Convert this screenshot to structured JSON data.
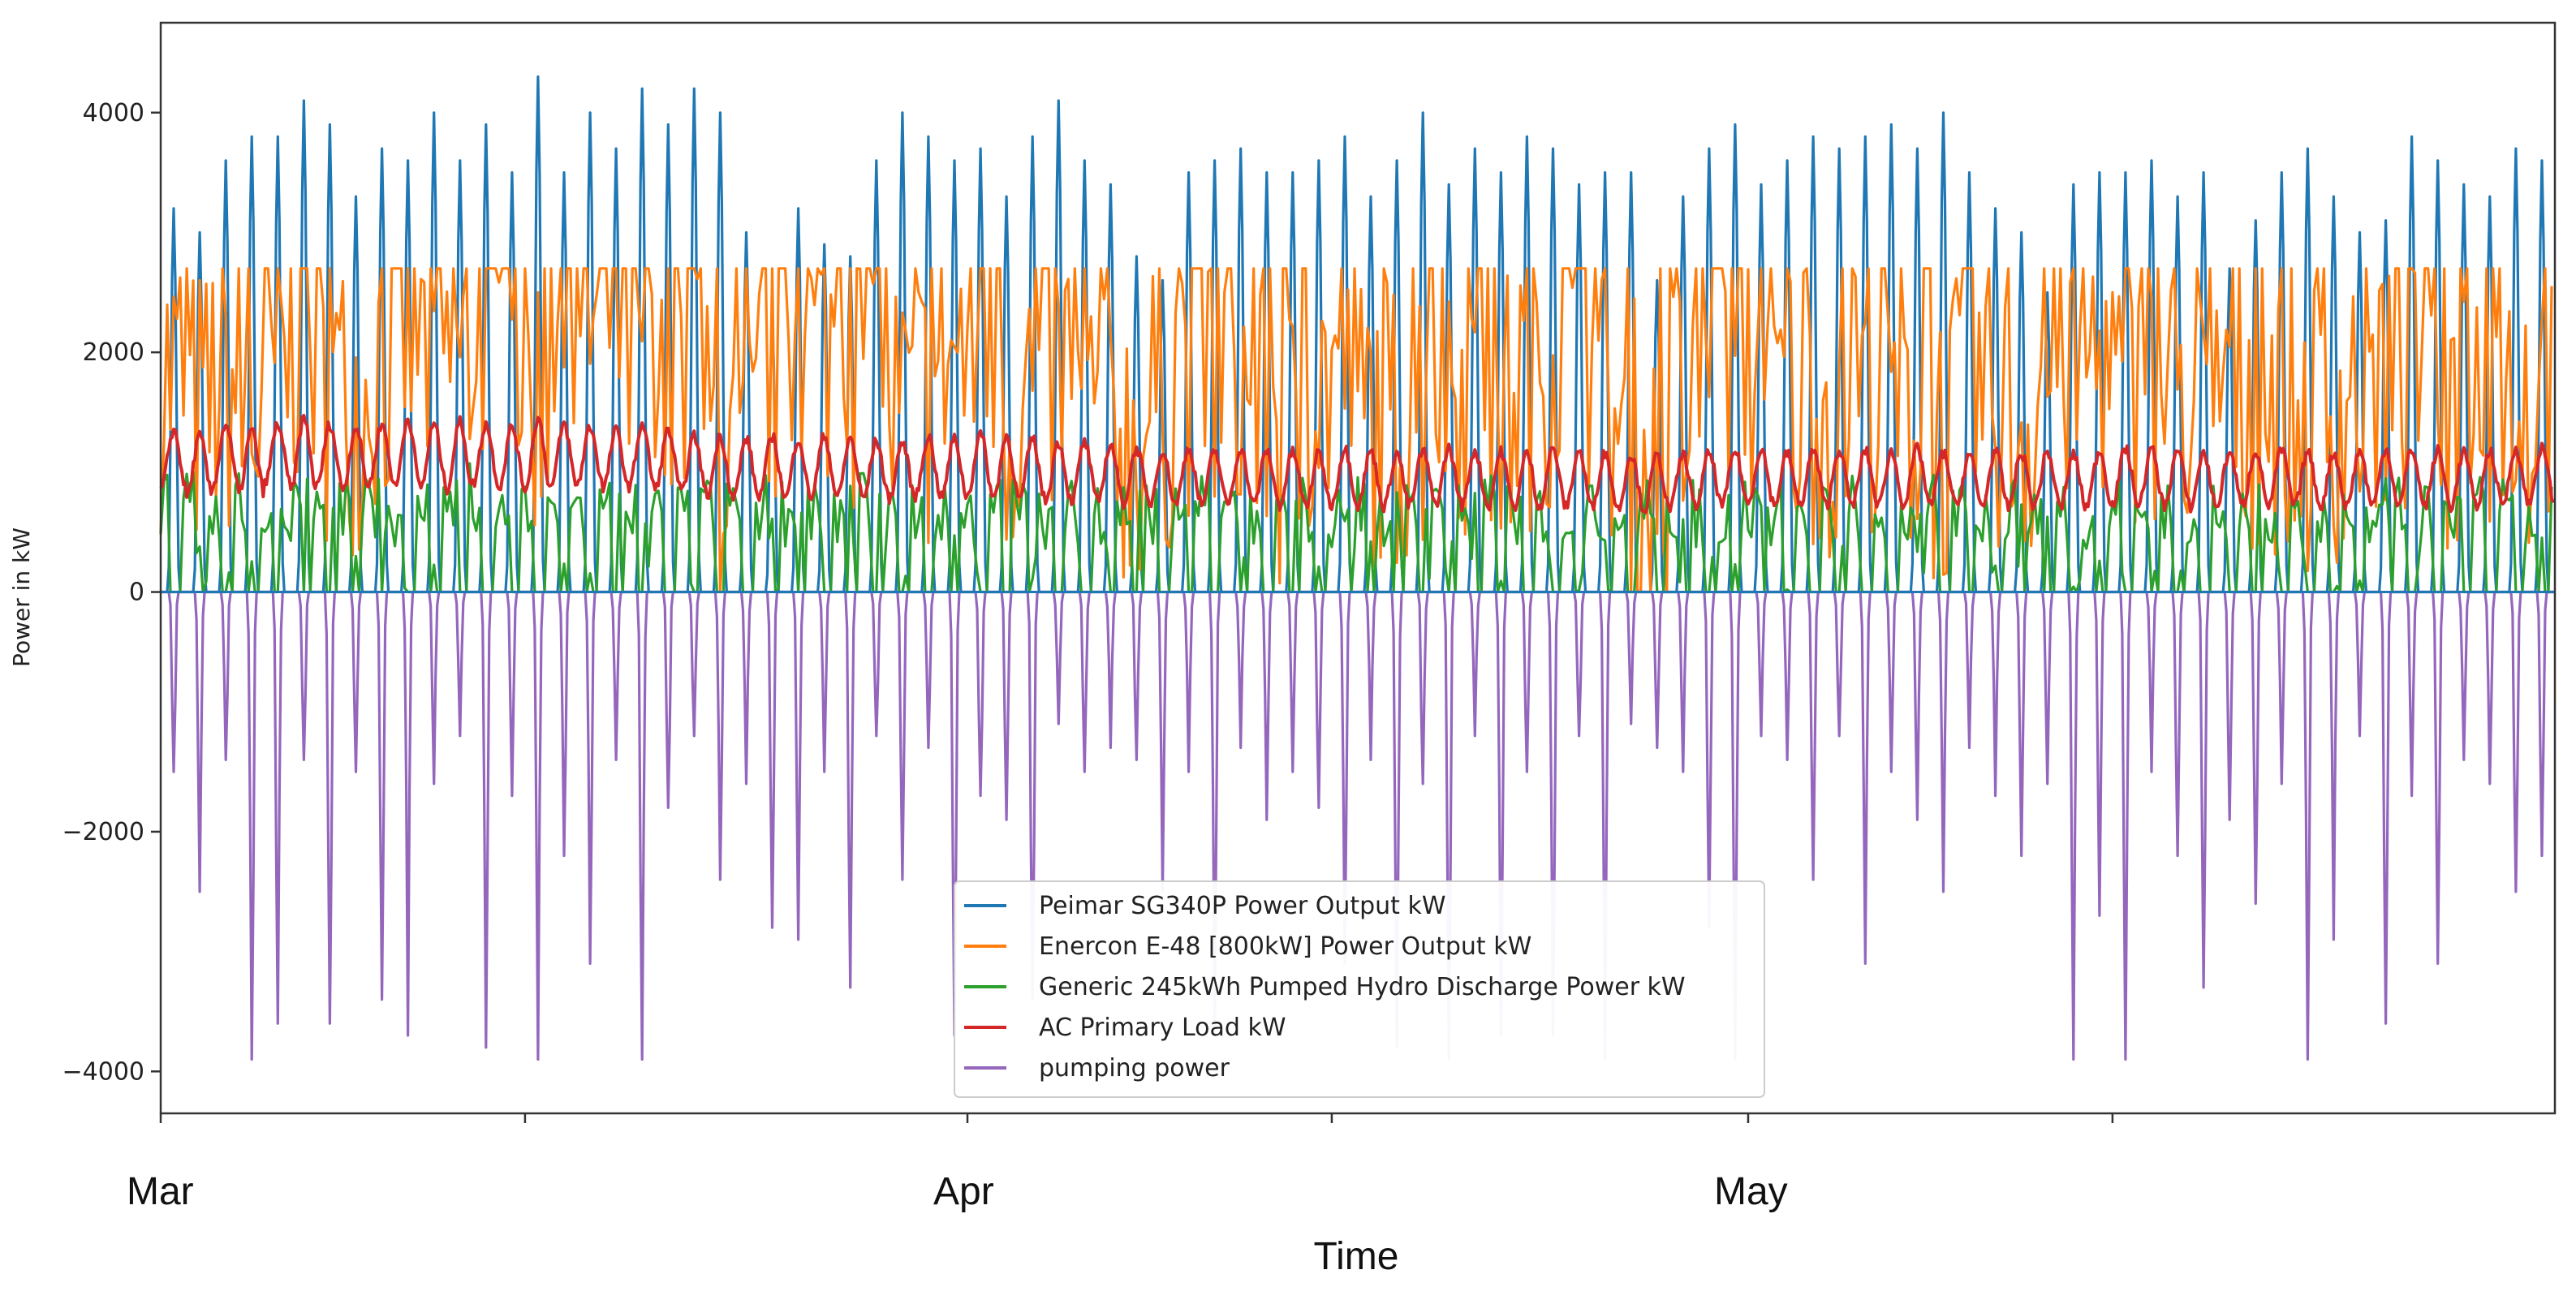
{
  "chart_data": {
    "type": "line",
    "title": "",
    "xlabel": "Time",
    "ylabel": "Power in kW",
    "ylim": [
      -4350,
      4750
    ],
    "yticks": [
      4000,
      2000,
      0,
      -2000,
      -4000
    ],
    "ytick_labels": [
      "4000",
      "2000",
      "0",
      "−2000",
      "−4000"
    ],
    "x_unit": "days since Mar 1",
    "xlim": [
      0,
      92
    ],
    "xticks_days": [
      0,
      14,
      31,
      45,
      61,
      75
    ],
    "month_labels": [
      {
        "label": "Mar",
        "day": 0
      },
      {
        "label": "Apr",
        "day": 31
      },
      {
        "label": "May",
        "day": 61
      }
    ],
    "legend_position": "bottom-center",
    "grid": false,
    "series": [
      {
        "name": "Peimar SG340P Power Output kW",
        "color": "#1f77b4",
        "daily_peak_kw": [
          3200,
          3000,
          3600,
          3800,
          3800,
          4100,
          3900,
          3300,
          3700,
          3600,
          4000,
          3600,
          3900,
          3500,
          4300,
          3500,
          4000,
          3700,
          4200,
          3900,
          4200,
          4000,
          3000,
          2300,
          3200,
          2900,
          2800,
          3600,
          4000,
          3800,
          3600,
          3700,
          3300,
          3800,
          4100,
          3600,
          3400,
          2800,
          2600,
          3500,
          3600,
          3700,
          3500,
          3500,
          3600,
          3800,
          3300,
          3600,
          4000,
          3400,
          3700,
          3500,
          3800,
          3700,
          3400,
          3500,
          3500,
          2600,
          3300,
          3700,
          3900,
          3400,
          3600,
          3800,
          3700,
          3800,
          3900,
          3700,
          4000,
          3500,
          3200,
          3000,
          2500,
          3400,
          3500,
          3500,
          3600,
          3300,
          3500,
          2700,
          3100,
          3500,
          3700,
          3300,
          3000,
          3100,
          3800,
          3600,
          3400,
          3300,
          3700,
          3600
        ]
      },
      {
        "name": "Enercon E-48 [800kW] Power Output kW",
        "color": "#ff7f0e",
        "daily_mean_kw": [
          1800,
          1500,
          1700,
          1400,
          1900,
          2100,
          1700,
          1600,
          1900,
          2200,
          2000,
          1800,
          2300,
          2000,
          1700,
          2100,
          2300,
          2200,
          2000,
          1400,
          1800,
          1200,
          1000,
          1900,
          2200,
          2100,
          2000,
          2200,
          1500,
          1600,
          2000,
          1900,
          1500,
          1700,
          1800,
          1400,
          1500,
          1300,
          1600,
          1900,
          1800,
          1700,
          1600,
          1200,
          1700,
          1900,
          1500,
          1400,
          1600,
          1900,
          1700,
          1500,
          1800,
          2000,
          2100,
          1600,
          1200,
          900,
          1400,
          1900,
          2100,
          1800,
          1600,
          1700,
          1500,
          1800,
          1600,
          1500,
          1300,
          1700,
          1600,
          1400,
          1800,
          1900,
          2000,
          1700,
          1500,
          1700,
          1400,
          1800,
          1600,
          1600,
          1400,
          1500,
          1700,
          1800,
          1700,
          1500,
          1600,
          1800,
          1700,
          1500
        ]
      },
      {
        "name": "Generic 245kWh Pumped Hydro Discharge Power kW",
        "color": "#2ca02c",
        "daily_peak_kw": [
          1000,
          1100,
          950,
          1000,
          900,
          1050,
          1000,
          950,
          1000,
          900,
          1000,
          1100,
          1000,
          900,
          1000,
          950,
          900,
          1000,
          1000,
          950,
          900,
          1000,
          1050,
          1000,
          950,
          900,
          1000,
          1000,
          950,
          1000,
          900,
          950,
          1000,
          1000,
          900,
          950,
          1000,
          1000,
          950,
          900,
          1000,
          950,
          900,
          1000,
          950,
          900,
          1000,
          950,
          900,
          1000,
          950,
          1000,
          900,
          950,
          1000,
          900,
          950,
          1000,
          950,
          900,
          1000,
          950,
          1000,
          950,
          900,
          1000,
          950,
          900,
          1000,
          950,
          900,
          1000,
          1000,
          950,
          900,
          1000,
          950,
          900,
          1000,
          950,
          900,
          1000,
          950,
          1000,
          900,
          950,
          1000,
          950,
          900,
          1000,
          950,
          1000
        ]
      },
      {
        "name": "AC Primary Load kW",
        "color": "#d62728",
        "daily_max_kw": [
          1350,
          1300,
          1400,
          1350,
          1400,
          1450,
          1400,
          1380,
          1400,
          1450,
          1400,
          1420,
          1400,
          1380,
          1450,
          1400,
          1380,
          1350,
          1400,
          1350,
          1300,
          1300,
          1280,
          1300,
          1280,
          1300,
          1280,
          1260,
          1250,
          1300,
          1280,
          1320,
          1300,
          1280,
          1250,
          1250,
          1230,
          1200,
          1180,
          1200,
          1180,
          1200,
          1180,
          1170,
          1160,
          1200,
          1180,
          1160,
          1180,
          1200,
          1180,
          1170,
          1160,
          1200,
          1180,
          1160,
          1150,
          1140,
          1150,
          1160,
          1180,
          1200,
          1160,
          1180,
          1190,
          1180,
          1170,
          1200,
          1160,
          1150,
          1180,
          1160,
          1170,
          1150,
          1180,
          1200,
          1190,
          1180,
          1160,
          1170,
          1180,
          1190,
          1170,
          1160,
          1180,
          1200,
          1190,
          1180,
          1170,
          1180,
          1200,
          1200
        ],
        "daily_min_kw": [
          850,
          800,
          880,
          820,
          900,
          850,
          880,
          860,
          900,
          870,
          880,
          860,
          900,
          870,
          850,
          880,
          900,
          860,
          880,
          850,
          820,
          800,
          780,
          800,
          780,
          800,
          790,
          780,
          780,
          800,
          790,
          800,
          780,
          770,
          760,
          760,
          750,
          740,
          730,
          740,
          730,
          740,
          730,
          720,
          710,
          730,
          720,
          710,
          730,
          740,
          720,
          710,
          700,
          720,
          710,
          700,
          690,
          680,
          700,
          720,
          730,
          740,
          720,
          730,
          720,
          730,
          720,
          740,
          720,
          710,
          720,
          710,
          720,
          700,
          720,
          730,
          720,
          720,
          710,
          720,
          730,
          720,
          720,
          710,
          720,
          730,
          720,
          720,
          710,
          720,
          740,
          740
        ]
      },
      {
        "name": "pumping power",
        "color": "#9467bd",
        "daily_min_kw": [
          -1500,
          -2500,
          -1400,
          -3900,
          -3600,
          -1400,
          -3600,
          -1500,
          -3400,
          -3700,
          -1600,
          -1200,
          -3800,
          -1700,
          -3900,
          -2200,
          -3100,
          -1400,
          -3900,
          -1800,
          -1200,
          -2400,
          -1600,
          -2800,
          -2900,
          -1500,
          -3300,
          -1200,
          -2400,
          -1300,
          -3700,
          -1700,
          -1900,
          -3400,
          -1100,
          -1500,
          -1300,
          -1400,
          -2500,
          -1500,
          -3700,
          -1300,
          -1900,
          -1500,
          -1800,
          -3100,
          -1400,
          -3800,
          -1600,
          -3900,
          -1200,
          -3700,
          -1500,
          -3700,
          -1200,
          -3900,
          -1100,
          -1300,
          -1500,
          -2800,
          -3900,
          -1200,
          -1400,
          -2400,
          -1200,
          -3100,
          -1500,
          -1900,
          -2500,
          -1300,
          -1700,
          -2200,
          -1600,
          -3900,
          -2700,
          -3900,
          -1500,
          -2200,
          -3300,
          -1900,
          -2600,
          -1600,
          -3900,
          -2900,
          -1200,
          -3600,
          -1700,
          -3100,
          -1400,
          -1600,
          -2500,
          -2200
        ]
      }
    ]
  }
}
